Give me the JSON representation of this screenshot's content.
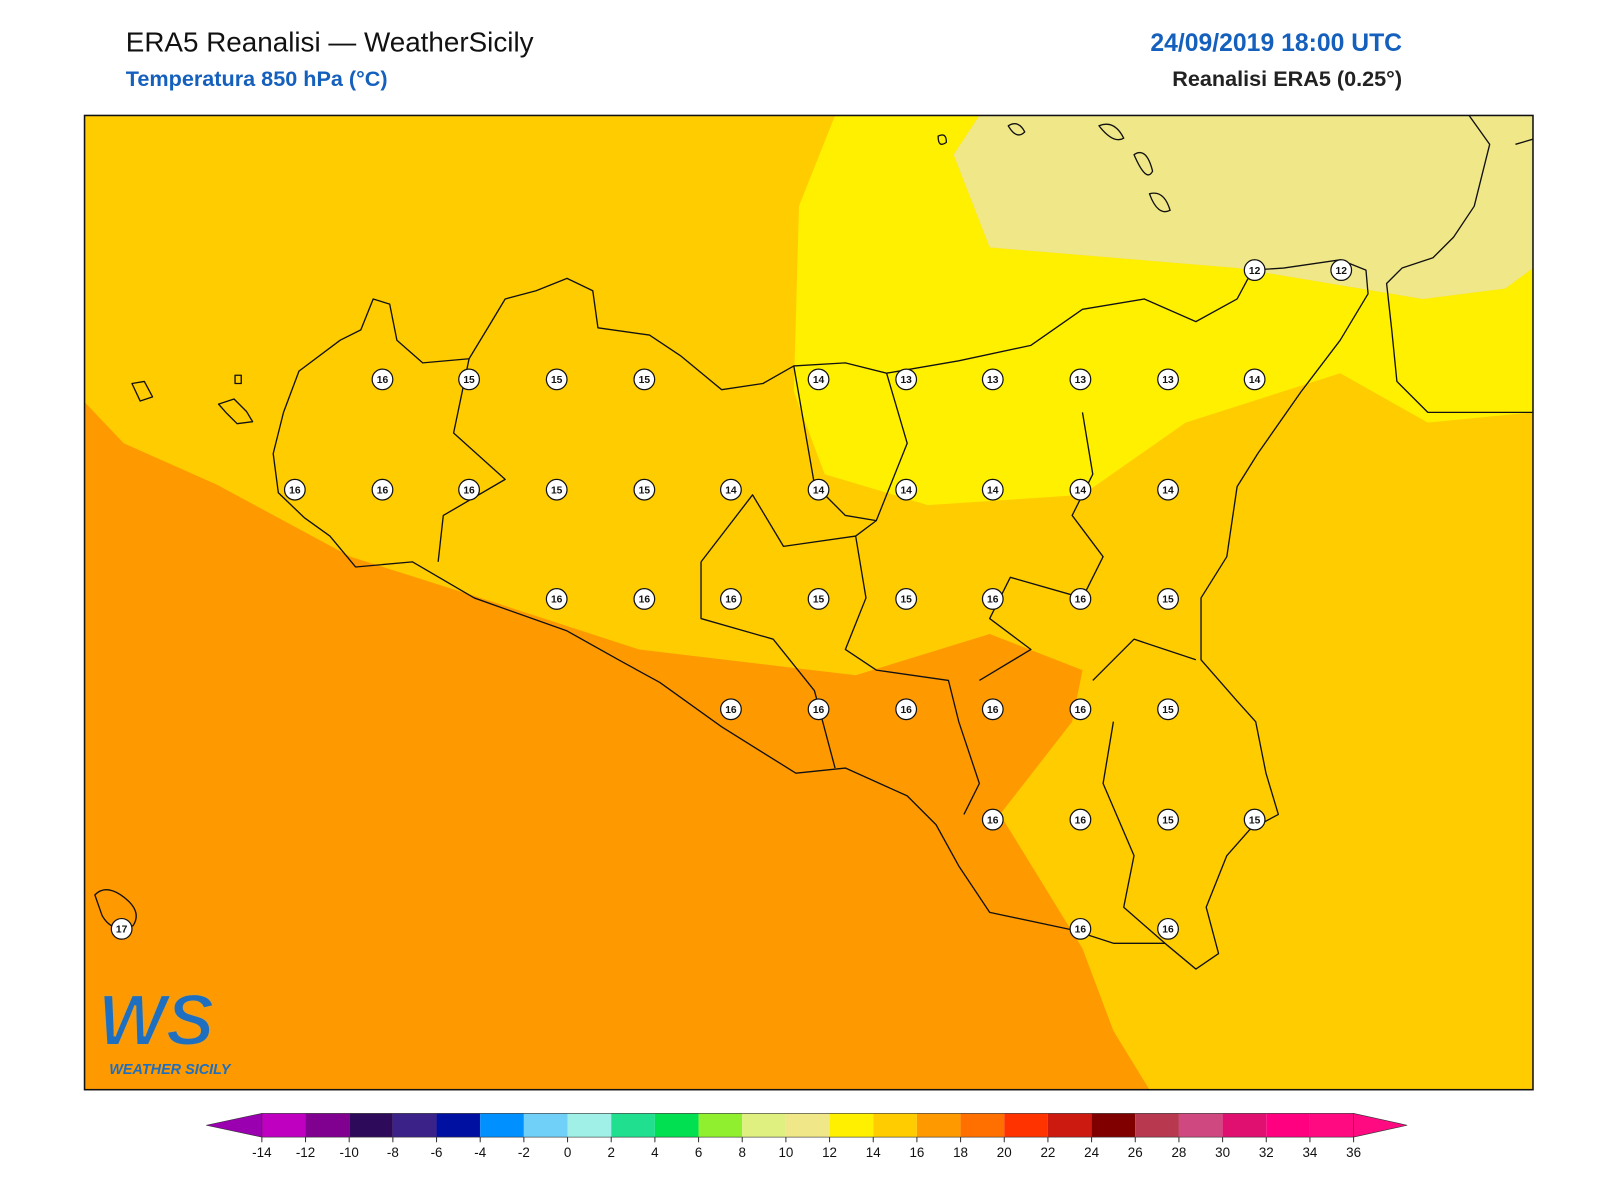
{
  "header": {
    "title": "ERA5 Reanalisi — WeatherSicily",
    "subtitle": "Temperatura 850 hPa (°C)",
    "datetime": "24/09/2019 18:00 UTC",
    "source": "Reanalisi ERA5 (0.25°)"
  },
  "logo": {
    "mark": "WS",
    "text": "WEATHER SICILY"
  },
  "stations": [
    16,
    15,
    15,
    15,
    14,
    13,
    13,
    13,
    13,
    14,
    12,
    12,
    16,
    16,
    16,
    15,
    15,
    14,
    14,
    14,
    14,
    14,
    14,
    16,
    16,
    16,
    15,
    15,
    16,
    16,
    15,
    16,
    16,
    16,
    16,
    16,
    15,
    16,
    16,
    15,
    15,
    17,
    16,
    16
  ],
  "colorbar": {
    "ticks": [
      -14,
      -12,
      -10,
      -8,
      -6,
      -4,
      -2,
      0,
      2,
      4,
      6,
      8,
      10,
      12,
      14,
      16,
      18,
      20,
      22,
      24,
      26,
      28,
      30,
      32,
      34,
      36
    ],
    "under": "#9a00b0",
    "over": "#ff0a80",
    "colors": [
      "#c000c0",
      "#800090",
      "#2d0a5a",
      "#3a2288",
      "#0010a0",
      "#0090ff",
      "#70d0f8",
      "#a0f0e8",
      "#20e090",
      "#00e050",
      "#90f030",
      "#e0f080",
      "#f0e888",
      "#fff000",
      "#ffcc00",
      "#ff9900",
      "#ff7000",
      "#ff3300",
      "#cc1a10",
      "#800000",
      "#b83850",
      "#d04880",
      "#e01070",
      "#ff0080",
      "#ff0a80"
    ]
  }
}
